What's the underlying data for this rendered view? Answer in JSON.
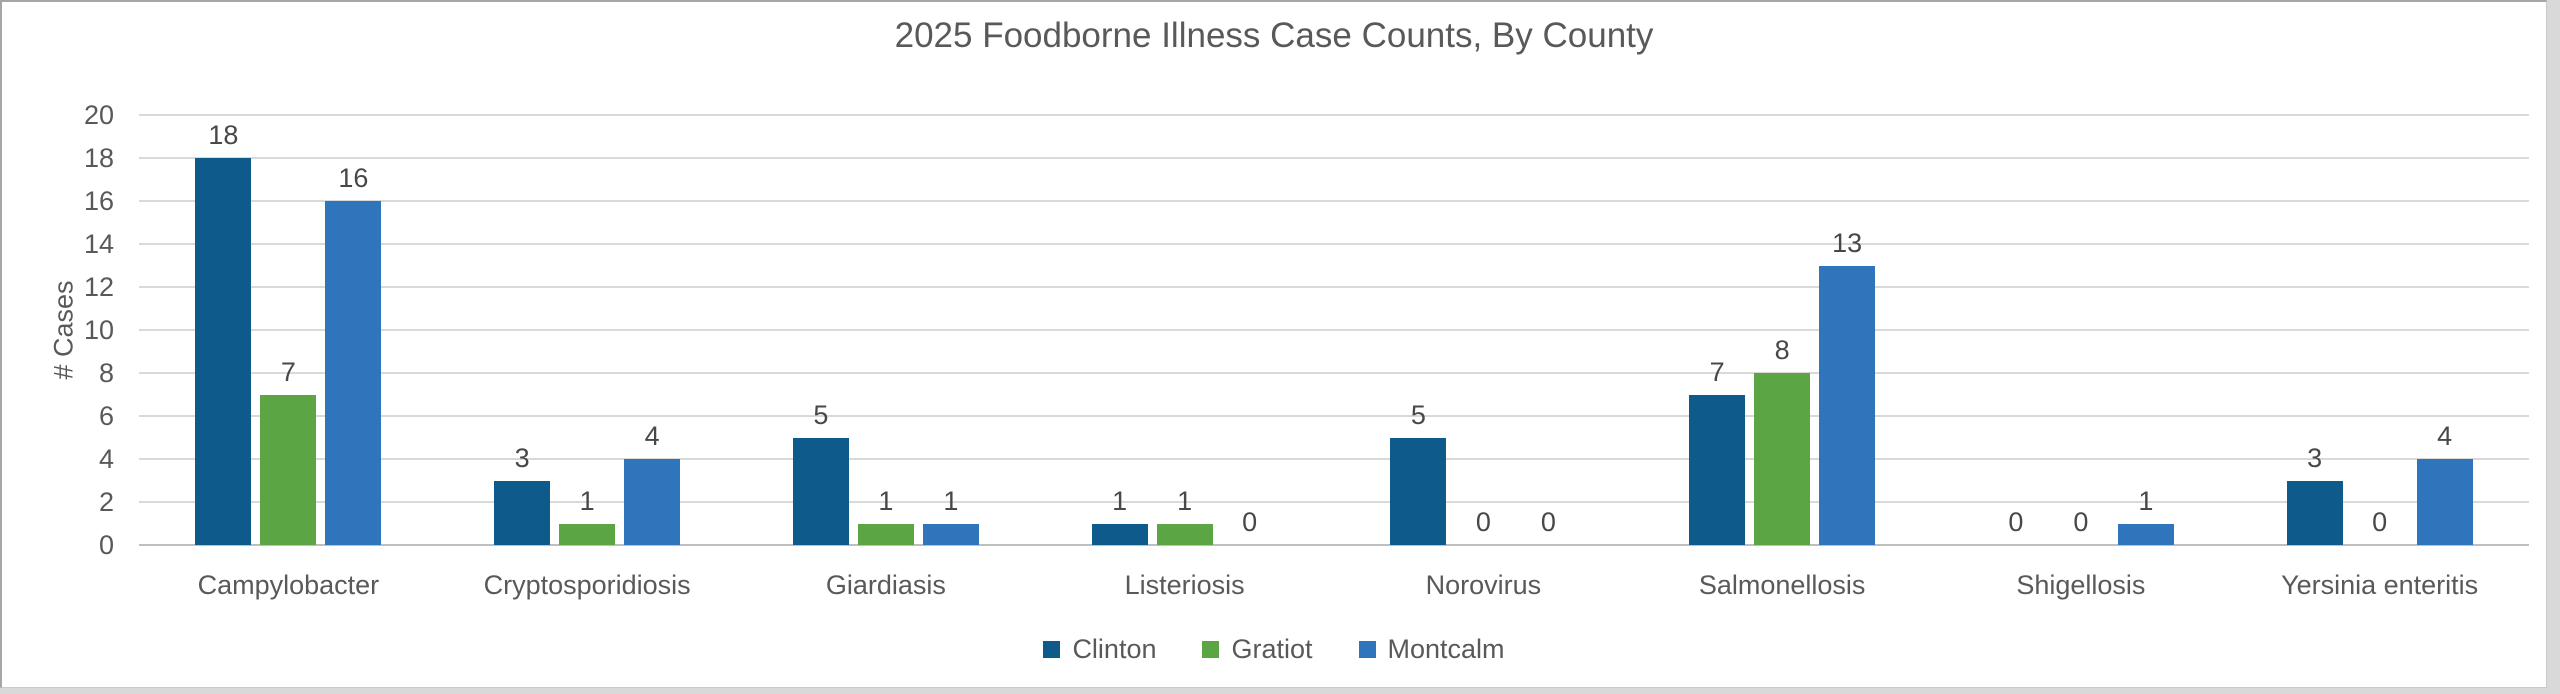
{
  "chart_data": {
    "type": "bar",
    "title": "2025 Foodborne Illness Case Counts, By County",
    "categories": [
      "Campylobacter",
      "Cryptosporidiosis",
      "Giardiasis",
      "Listeriosis",
      "Norovirus",
      "Salmonellosis",
      "Shigellosis",
      "Yersinia enteritis"
    ],
    "series": [
      {
        "name": "Clinton",
        "color": "#0e5a8a",
        "values": [
          18,
          3,
          5,
          1,
          5,
          7,
          0,
          3
        ]
      },
      {
        "name": "Gratiot",
        "color": "#5ba544",
        "values": [
          7,
          1,
          1,
          1,
          0,
          8,
          0,
          0
        ]
      },
      {
        "name": "Montcalm",
        "color": "#2e75bc",
        "values": [
          16,
          4,
          1,
          0,
          0,
          13,
          1,
          4
        ]
      }
    ],
    "xlabel": "",
    "ylabel": "# Cases",
    "ylim": [
      0,
      20
    ],
    "ytick_step": 2,
    "yticks": [
      0,
      2,
      4,
      6,
      8,
      10,
      12,
      14,
      16,
      18,
      20
    ],
    "grid": true,
    "data_labels": true,
    "legend_position": "bottom-center"
  },
  "style": {
    "gridline_color": "#d9d9d9",
    "axis_line_color": "#bfbfbf",
    "text_color": "#595959",
    "data_label_color": "#484848",
    "background": "#ffffff",
    "frame_border": "#a6a6a6"
  }
}
